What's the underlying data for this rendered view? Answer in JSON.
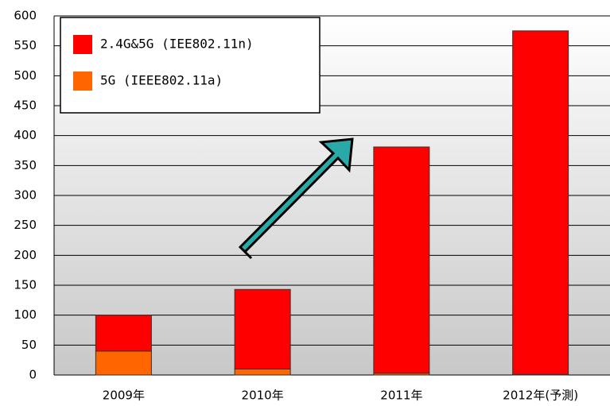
{
  "chart_data": {
    "type": "bar",
    "stacked": true,
    "categories": [
      "2009年",
      "2010年",
      "2011年",
      "2012年(予測)"
    ],
    "series": [
      {
        "name": "5G (IEEE802.11a)",
        "color": "#ff6600",
        "values": [
          40,
          10,
          3,
          1
        ]
      },
      {
        "name": "2.4G&5G (IEE802.11n)",
        "color": "#ff0000",
        "values": [
          60,
          133,
          378,
          574
        ]
      }
    ],
    "ylim": [
      0,
      600
    ],
    "yticks": [
      0,
      50,
      100,
      150,
      200,
      250,
      300,
      350,
      400,
      450,
      500,
      550,
      600
    ],
    "grid": true,
    "legend": "upper left"
  }
}
